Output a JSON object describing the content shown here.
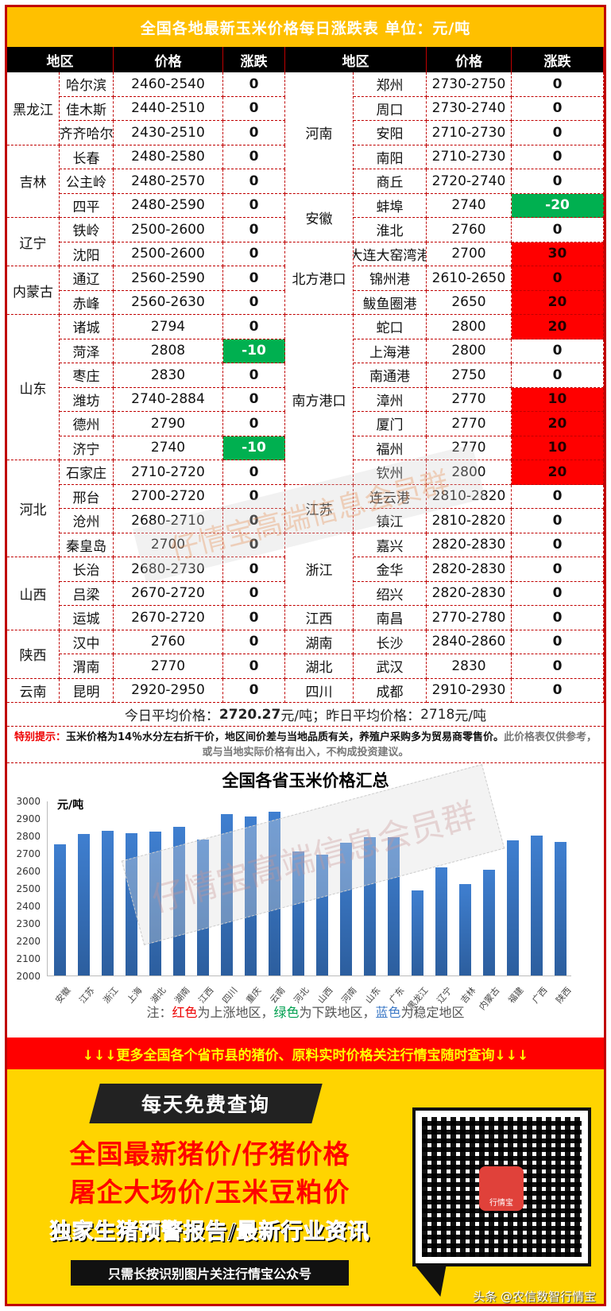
{
  "header": {
    "title": "全国各地最新玉米价格每日涨跌表   单位：元/吨",
    "columns": [
      "地区",
      "价格",
      "涨跌",
      "地区",
      "价格",
      "涨跌"
    ]
  },
  "left_table": [
    {
      "province": "黑龙江",
      "rows": [
        {
          "city": "哈尔滨",
          "price": "2460-2540",
          "change": "0",
          "trend": "flat"
        },
        {
          "city": "佳木斯",
          "price": "2440-2510",
          "change": "0",
          "trend": "flat"
        },
        {
          "city": "齐齐哈尔",
          "price": "2430-2510",
          "change": "0",
          "trend": "flat"
        }
      ]
    },
    {
      "province": "吉林",
      "rows": [
        {
          "city": "长春",
          "price": "2480-2580",
          "change": "0",
          "trend": "flat"
        },
        {
          "city": "公主岭",
          "price": "2480-2570",
          "change": "0",
          "trend": "flat"
        },
        {
          "city": "四平",
          "price": "2480-2590",
          "change": "0",
          "trend": "flat"
        }
      ]
    },
    {
      "province": "辽宁",
      "rows": [
        {
          "city": "铁岭",
          "price": "2500-2600",
          "change": "0",
          "trend": "flat"
        },
        {
          "city": "沈阳",
          "price": "2500-2600",
          "change": "0",
          "trend": "flat"
        }
      ]
    },
    {
      "province": "内蒙古",
      "rows": [
        {
          "city": "通辽",
          "price": "2560-2590",
          "change": "0",
          "trend": "flat"
        },
        {
          "city": "赤峰",
          "price": "2560-2630",
          "change": "0",
          "trend": "flat"
        }
      ]
    },
    {
      "province": "山东",
      "rows": [
        {
          "city": "诸城",
          "price": "2794",
          "change": "0",
          "trend": "flat"
        },
        {
          "city": "菏泽",
          "price": "2808",
          "change": "-10",
          "trend": "down"
        },
        {
          "city": "枣庄",
          "price": "2830",
          "change": "0",
          "trend": "flat"
        },
        {
          "city": "潍坊",
          "price": "2740-2884",
          "change": "0",
          "trend": "flat"
        },
        {
          "city": "德州",
          "price": "2790",
          "change": "0",
          "trend": "flat"
        },
        {
          "city": "济宁",
          "price": "2740",
          "change": "-10",
          "trend": "down"
        }
      ]
    },
    {
      "province": "河北",
      "rows": [
        {
          "city": "石家庄",
          "price": "2710-2720",
          "change": "0",
          "trend": "flat"
        },
        {
          "city": "邢台",
          "price": "2700-2720",
          "change": "0",
          "trend": "flat"
        },
        {
          "city": "沧州",
          "price": "2680-2710",
          "change": "0",
          "trend": "flat"
        },
        {
          "city": "秦皇岛",
          "price": "2700",
          "change": "0",
          "trend": "flat"
        }
      ]
    },
    {
      "province": "山西",
      "rows": [
        {
          "city": "长治",
          "price": "2680-2730",
          "change": "0",
          "trend": "flat"
        },
        {
          "city": "吕梁",
          "price": "2670-2720",
          "change": "0",
          "trend": "flat"
        },
        {
          "city": "运城",
          "price": "2670-2720",
          "change": "0",
          "trend": "flat"
        }
      ]
    },
    {
      "province": "陕西",
      "rows": [
        {
          "city": "汉中",
          "price": "2760",
          "change": "0",
          "trend": "flat"
        },
        {
          "city": "渭南",
          "price": "2770",
          "change": "0",
          "trend": "flat"
        }
      ]
    },
    {
      "province": "云南",
      "rows": [
        {
          "city": "昆明",
          "price": "2920-2950",
          "change": "0",
          "trend": "flat"
        }
      ]
    }
  ],
  "right_table": [
    {
      "province": "河南",
      "rows": [
        {
          "city": "郑州",
          "price": "2730-2750",
          "change": "0",
          "trend": "flat"
        },
        {
          "city": "周口",
          "price": "2730-2740",
          "change": "0",
          "trend": "flat"
        },
        {
          "city": "安阳",
          "price": "2710-2730",
          "change": "0",
          "trend": "flat"
        },
        {
          "city": "南阳",
          "price": "2710-2730",
          "change": "0",
          "trend": "flat"
        },
        {
          "city": "商丘",
          "price": "2720-2740",
          "change": "0",
          "trend": "flat"
        }
      ]
    },
    {
      "province": "安徽",
      "rows": [
        {
          "city": "蚌埠",
          "price": "2740",
          "change": "-20",
          "trend": "down"
        },
        {
          "city": "淮北",
          "price": "2760",
          "change": "0",
          "trend": "flat"
        }
      ]
    },
    {
      "province": "北方港口",
      "rows": [
        {
          "city": "大连大窑湾港",
          "price": "2700",
          "change": "30",
          "trend": "up"
        },
        {
          "city": "锦州港",
          "price": "2610-2650",
          "change": "0",
          "trend": "up"
        },
        {
          "city": "鲅鱼圈港",
          "price": "2650",
          "change": "20",
          "trend": "up"
        }
      ]
    },
    {
      "province": "南方港口",
      "rows": [
        {
          "city": "蛇口",
          "price": "2800",
          "change": "20",
          "trend": "up"
        },
        {
          "city": "上海港",
          "price": "2800",
          "change": "0",
          "trend": "flat"
        },
        {
          "city": "南通港",
          "price": "2750",
          "change": "0",
          "trend": "flat"
        },
        {
          "city": "漳州",
          "price": "2770",
          "change": "10",
          "trend": "up"
        },
        {
          "city": "厦门",
          "price": "2770",
          "change": "20",
          "trend": "up"
        },
        {
          "city": "福州",
          "price": "2770",
          "change": "10",
          "trend": "up"
        },
        {
          "city": "钦州",
          "price": "2800",
          "change": "20",
          "trend": "up"
        }
      ]
    },
    {
      "province": "江苏",
      "rows": [
        {
          "city": "连云港",
          "price": "2810-2820",
          "change": "0",
          "trend": "flat"
        },
        {
          "city": "镇江",
          "price": "2810-2820",
          "change": "0",
          "trend": "flat"
        }
      ]
    },
    {
      "province": "浙江",
      "rows": [
        {
          "city": "嘉兴",
          "price": "2820-2830",
          "change": "0",
          "trend": "flat"
        },
        {
          "city": "金华",
          "price": "2820-2830",
          "change": "0",
          "trend": "flat"
        },
        {
          "city": "绍兴",
          "price": "2820-2830",
          "change": "0",
          "trend": "flat"
        }
      ]
    },
    {
      "province": "江西",
      "rows": [
        {
          "city": "南昌",
          "price": "2770-2780",
          "change": "0",
          "trend": "flat"
        }
      ]
    },
    {
      "province": "湖南",
      "rows": [
        {
          "city": "长沙",
          "price": "2840-2860",
          "change": "0",
          "trend": "flat"
        }
      ]
    },
    {
      "province": "湖北",
      "rows": [
        {
          "city": "武汉",
          "price": "2830",
          "change": "0",
          "trend": "flat"
        }
      ]
    },
    {
      "province": "四川",
      "rows": [
        {
          "city": "成都",
          "price": "2910-2930",
          "change": "0",
          "trend": "flat"
        }
      ]
    }
  ],
  "average": {
    "today_label": "今日平均价格：",
    "today_value": "2720.27",
    "unit": "元/吨",
    "sep": "；",
    "yesterday_label": "昨日平均价格：",
    "yesterday_value": "2718",
    "yesterday_unit": "元/吨"
  },
  "notice": {
    "label": "特别提示：",
    "text": "玉米价格为14％水分左右折干价，地区间价差与当地品质有关，养殖户采购多为贸易商零售价。",
    "disclaimer": "此价格表仅供参考，或与当地实际价格有出入，不构成投资建议。"
  },
  "watermark": {
    "text": "仔情宝高端信息会员群"
  },
  "chart_data": {
    "type": "bar",
    "title": "全国各省玉米价格汇总",
    "ylabel": "元/吨",
    "xlabel": "",
    "ylim": [
      2000,
      3000
    ],
    "yticks": [
      2000,
      2100,
      2200,
      2300,
      2400,
      2500,
      2600,
      2700,
      2800,
      2900,
      3000
    ],
    "grid": false,
    "categories": [
      "安徽",
      "江苏",
      "浙江",
      "上海",
      "湖北",
      "湖南",
      "江西",
      "四川",
      "重庆",
      "云南",
      "河北",
      "山西",
      "河南",
      "山东",
      "广东",
      "黑龙江",
      "辽宁",
      "吉林",
      "内蒙古",
      "福建",
      "广西",
      "陕西"
    ],
    "values": [
      2750,
      2809,
      2827,
      2814,
      2823,
      2851,
      2777,
      2921,
      2909,
      2936,
      2709,
      2691,
      2760,
      2789,
      2789,
      2488,
      2620,
      2521,
      2606,
      2771,
      2798,
      2765
    ],
    "color": "#3a73c0",
    "legend_note": {
      "prefix": "注：",
      "red": "红色",
      "red_text": "为上涨地区，",
      "green": "绿色",
      "green_text": "为下跌地区，",
      "blue": "蓝色",
      "blue_text": "为稳定地区"
    }
  },
  "banner": {
    "text": "↓↓↓更多全国各个省市县的猪价、原料实时价格关注行情宝随时查询↓↓↓"
  },
  "promo": {
    "headline": "每天免费查询",
    "line1": "全国最新猪价/仔猪价格",
    "line2": "屠企大场价/玉米豆粕价",
    "line3": "独家生猪预警报告/最新行业资讯",
    "cta": "只需长按识别图片关注行情宝公众号",
    "qr_logo": "行情宝",
    "source": "头条 @农信数智行情宝"
  },
  "colors": {
    "title_bg": "#ffc000",
    "header_bg": "#000000",
    "border": "#c00000",
    "up": "#ff0000",
    "down": "#00b050",
    "banner": "#ff0000",
    "promo_bg": "#ffd400"
  }
}
